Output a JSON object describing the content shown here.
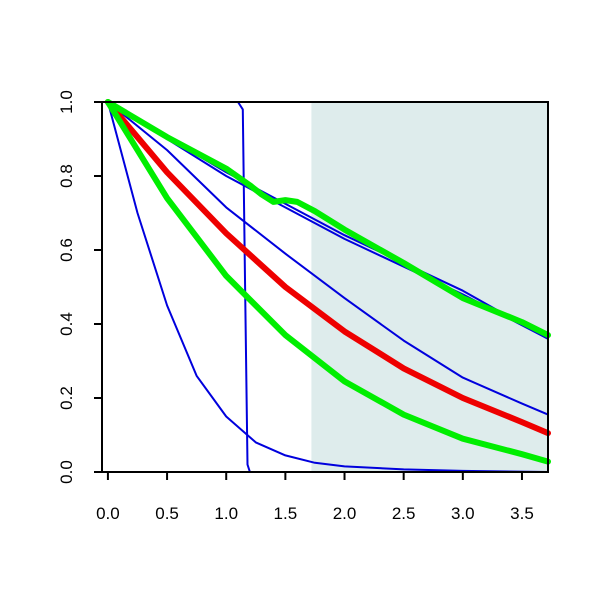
{
  "chart_data": {
    "type": "line",
    "title": "",
    "xlabel": "",
    "ylabel": "",
    "xlim": [
      -0.05,
      3.72
    ],
    "ylim": [
      0.0,
      1.0
    ],
    "grid": false,
    "legend": "none",
    "x_ticks": [
      {
        "value": 0.0,
        "label": "0.0"
      },
      {
        "value": 0.5,
        "label": "0.5"
      },
      {
        "value": 1.0,
        "label": "1.0"
      },
      {
        "value": 1.5,
        "label": "1.5"
      },
      {
        "value": 2.0,
        "label": "2.0"
      },
      {
        "value": 2.5,
        "label": "2.5"
      },
      {
        "value": 3.0,
        "label": "3.0"
      },
      {
        "value": 3.5,
        "label": "3.5"
      }
    ],
    "y_ticks": [
      {
        "value": 0.0,
        "label": "0.0"
      },
      {
        "value": 0.2,
        "label": "0.2"
      },
      {
        "value": 0.4,
        "label": "0.4"
      },
      {
        "value": 0.6,
        "label": "0.6"
      },
      {
        "value": 0.8,
        "label": "0.8"
      },
      {
        "value": 1.0,
        "label": "1.0"
      }
    ],
    "shaded_region": {
      "x_from": 1.72,
      "x_to": 3.72,
      "color": "#deecec"
    },
    "colors": {
      "blue": "#0000dd",
      "red": "#ee0000",
      "green": "#00ee00"
    },
    "series": [
      {
        "color": "#0000dd",
        "width": "thin",
        "points": [
          [
            0.0,
            1.0
          ],
          [
            1.1,
            1.0
          ],
          [
            1.14,
            0.98
          ],
          [
            1.16,
            0.5
          ],
          [
            1.18,
            0.02
          ],
          [
            1.2,
            0.0
          ],
          [
            3.72,
            0.0
          ]
        ]
      },
      {
        "color": "#0000dd",
        "width": "thin",
        "points": [
          [
            0.0,
            1.0
          ],
          [
            0.25,
            0.7
          ],
          [
            0.5,
            0.45
          ],
          [
            0.75,
            0.26
          ],
          [
            1.0,
            0.15
          ],
          [
            1.25,
            0.08
          ],
          [
            1.5,
            0.045
          ],
          [
            1.75,
            0.025
          ],
          [
            2.0,
            0.015
          ],
          [
            2.5,
            0.007
          ],
          [
            3.0,
            0.003
          ],
          [
            3.72,
            0.0
          ]
        ]
      },
      {
        "color": "#0000dd",
        "width": "thin",
        "points": [
          [
            0.0,
            1.0
          ],
          [
            1.0,
            0.8
          ],
          [
            2.0,
            0.63
          ],
          [
            3.0,
            0.48
          ],
          [
            3.72,
            0.36
          ]
        ]
      },
      {
        "color": "#0000dd",
        "width": "thin",
        "points": [
          [
            0.0,
            1.0
          ],
          [
            1.0,
            0.81
          ],
          [
            2.0,
            0.64
          ],
          [
            3.0,
            0.49
          ],
          [
            3.72,
            0.36
          ]
        ]
      },
      {
        "color": "#0000dd",
        "width": "thin",
        "points": [
          [
            0.0,
            1.0
          ],
          [
            0.5,
            0.87
          ],
          [
            1.0,
            0.715
          ],
          [
            1.5,
            0.59
          ],
          [
            2.0,
            0.47
          ],
          [
            2.5,
            0.355
          ],
          [
            3.0,
            0.255
          ],
          [
            3.5,
            0.185
          ],
          [
            3.72,
            0.155
          ]
        ]
      },
      {
        "color": "#ee0000",
        "width": "thick",
        "points": [
          [
            0.0,
            1.0
          ],
          [
            0.5,
            0.81
          ],
          [
            1.0,
            0.645
          ],
          [
            1.5,
            0.5
          ],
          [
            2.0,
            0.38
          ],
          [
            2.5,
            0.28
          ],
          [
            3.0,
            0.2
          ],
          [
            3.5,
            0.135
          ],
          [
            3.72,
            0.105
          ]
        ]
      },
      {
        "color": "#00ee00",
        "width": "thick",
        "points": [
          [
            0.0,
            1.0
          ],
          [
            0.5,
            0.74
          ],
          [
            1.0,
            0.53
          ],
          [
            1.5,
            0.37
          ],
          [
            2.0,
            0.245
          ],
          [
            2.5,
            0.155
          ],
          [
            3.0,
            0.09
          ],
          [
            3.5,
            0.048
          ],
          [
            3.72,
            0.028
          ]
        ]
      },
      {
        "color": "#00ee00",
        "width": "thick",
        "points": [
          [
            0.0,
            1.0
          ],
          [
            0.5,
            0.905
          ],
          [
            1.0,
            0.82
          ],
          [
            1.2,
            0.775
          ],
          [
            1.3,
            0.75
          ],
          [
            1.4,
            0.73
          ],
          [
            1.5,
            0.735
          ],
          [
            1.6,
            0.73
          ],
          [
            1.75,
            0.705
          ],
          [
            2.0,
            0.655
          ],
          [
            2.5,
            0.565
          ],
          [
            3.0,
            0.47
          ],
          [
            3.5,
            0.405
          ],
          [
            3.72,
            0.37
          ]
        ]
      }
    ]
  }
}
